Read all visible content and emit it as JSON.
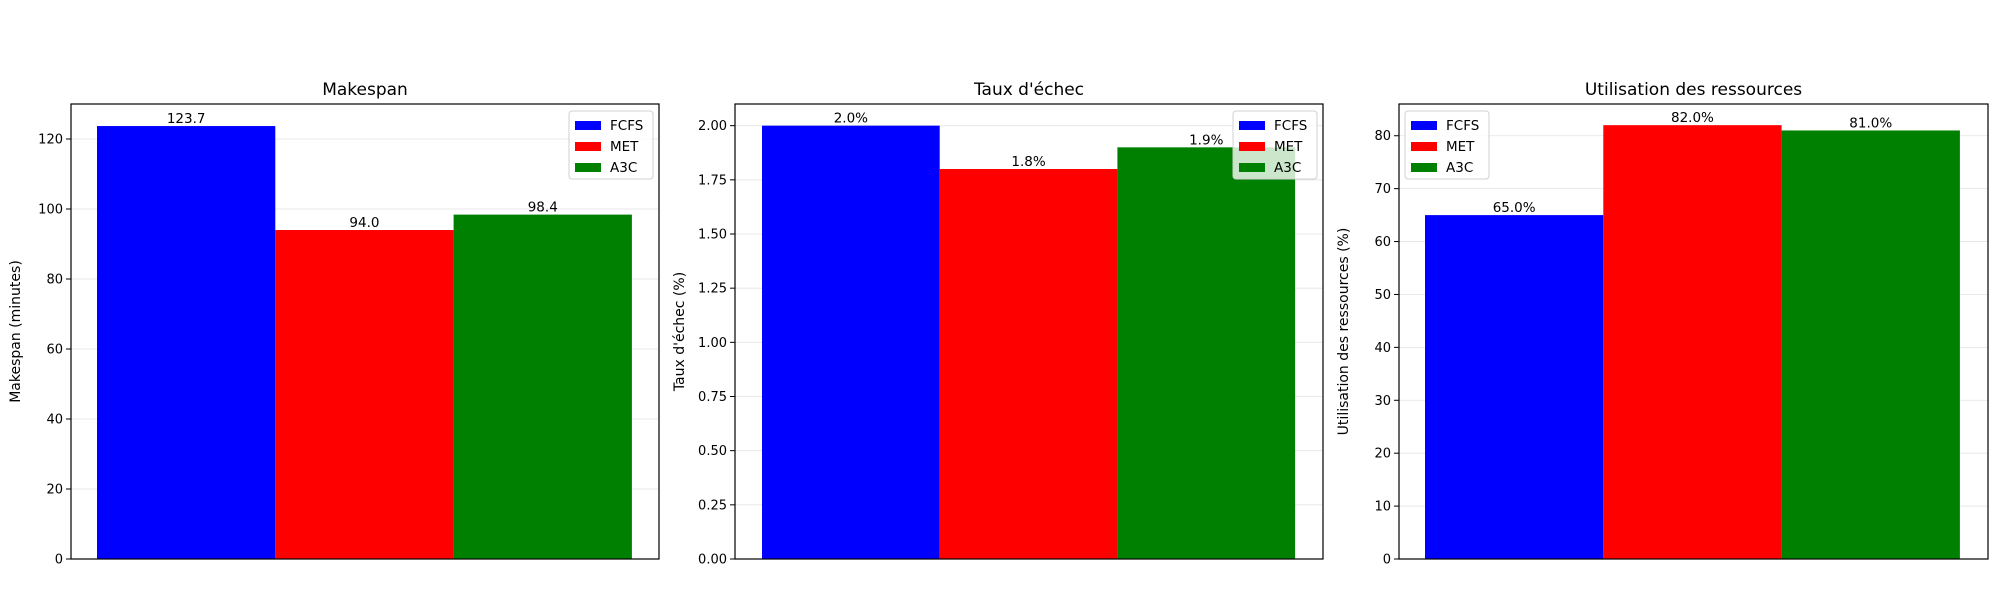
{
  "chart_data": [
    {
      "type": "bar",
      "title": "Makespan",
      "ylabel": "Makespan (minutes)",
      "xlabel": "",
      "ylim": [
        0,
        130
      ],
      "yticks": [
        "0",
        "20",
        "40",
        "60",
        "80",
        "100",
        "120"
      ],
      "legend_position": "upper-right",
      "series": [
        {
          "name": "FCFS",
          "value": 123.7,
          "label": "123.7",
          "color": "#0000ff"
        },
        {
          "name": "MET",
          "value": 94.0,
          "label": "94.0",
          "color": "#ff0000"
        },
        {
          "name": "A3C",
          "value": 98.4,
          "label": "98.4",
          "color": "#008000"
        }
      ]
    },
    {
      "type": "bar",
      "title": "Taux d'échec",
      "ylabel": "Taux d'échec (%)",
      "xlabel": "",
      "ylim": [
        0,
        2.1
      ],
      "yticks": [
        "0.00",
        "0.25",
        "0.50",
        "0.75",
        "1.00",
        "1.25",
        "1.50",
        "1.75",
        "2.00"
      ],
      "legend_position": "upper-right",
      "series": [
        {
          "name": "FCFS",
          "value": 2.0,
          "label": "2.0%",
          "color": "#0000ff"
        },
        {
          "name": "MET",
          "value": 1.8,
          "label": "1.8%",
          "color": "#ff0000"
        },
        {
          "name": "A3C",
          "value": 1.9,
          "label": "1.9%",
          "color": "#008000"
        }
      ]
    },
    {
      "type": "bar",
      "title": "Utilisation des ressources",
      "ylabel": "Utilisation des ressources (%)",
      "xlabel": "",
      "ylim": [
        0,
        86
      ],
      "yticks": [
        "0",
        "10",
        "20",
        "30",
        "40",
        "50",
        "60",
        "70",
        "80"
      ],
      "legend_position": "upper-left",
      "series": [
        {
          "name": "FCFS",
          "value": 65.0,
          "label": "65.0%",
          "color": "#0000ff"
        },
        {
          "name": "MET",
          "value": 82.0,
          "label": "82.0%",
          "color": "#ff0000"
        },
        {
          "name": "A3C",
          "value": 81.0,
          "label": "81.0%",
          "color": "#008000"
        }
      ]
    }
  ]
}
